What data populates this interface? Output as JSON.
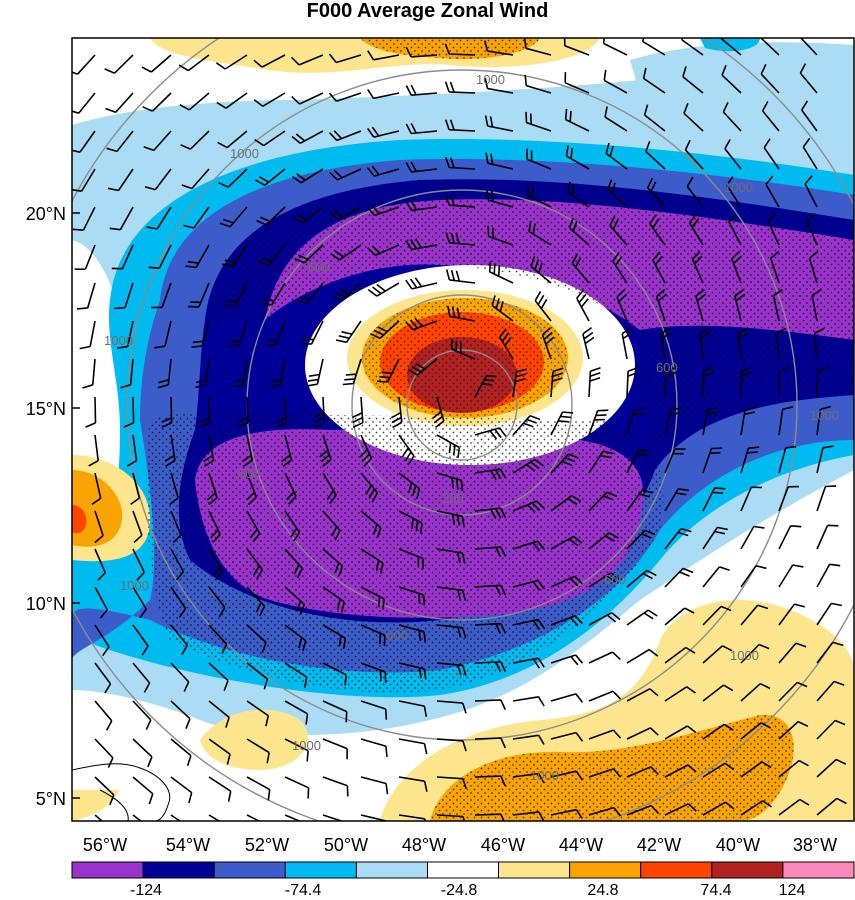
{
  "title": "F000 Average Zonal Wind",
  "map": {
    "lat_ticks": [
      "20°N",
      "15°N",
      "10°N",
      "5°N"
    ],
    "lon_ticks": [
      "56°W",
      "54°W",
      "52°W",
      "50°W",
      "48°W",
      "46°W",
      "44°W",
      "42°W",
      "40°W",
      "38°W"
    ],
    "radius_contour_labels": [
      "1000",
      "1000",
      "1000",
      "1000",
      "1000",
      "1000",
      "1000",
      "1000",
      "1000",
      "600",
      "600",
      "600",
      "600",
      "600",
      "200"
    ]
  },
  "colorbar": {
    "colors": [
      "#9933cc",
      "#000099",
      "#3b5cc9",
      "#00bbf0",
      "#aadcf5",
      "#ffffff",
      "#fde58d",
      "#f9a400",
      "#ff4400",
      "#b22222",
      "#ff88bb"
    ],
    "labels": [
      "-124",
      "-74.4",
      "-24.8",
      "24.8",
      "74.4",
      "124"
    ]
  },
  "colors": {
    "contour_gray": "#8c8c8c",
    "coast": "#000000"
  }
}
